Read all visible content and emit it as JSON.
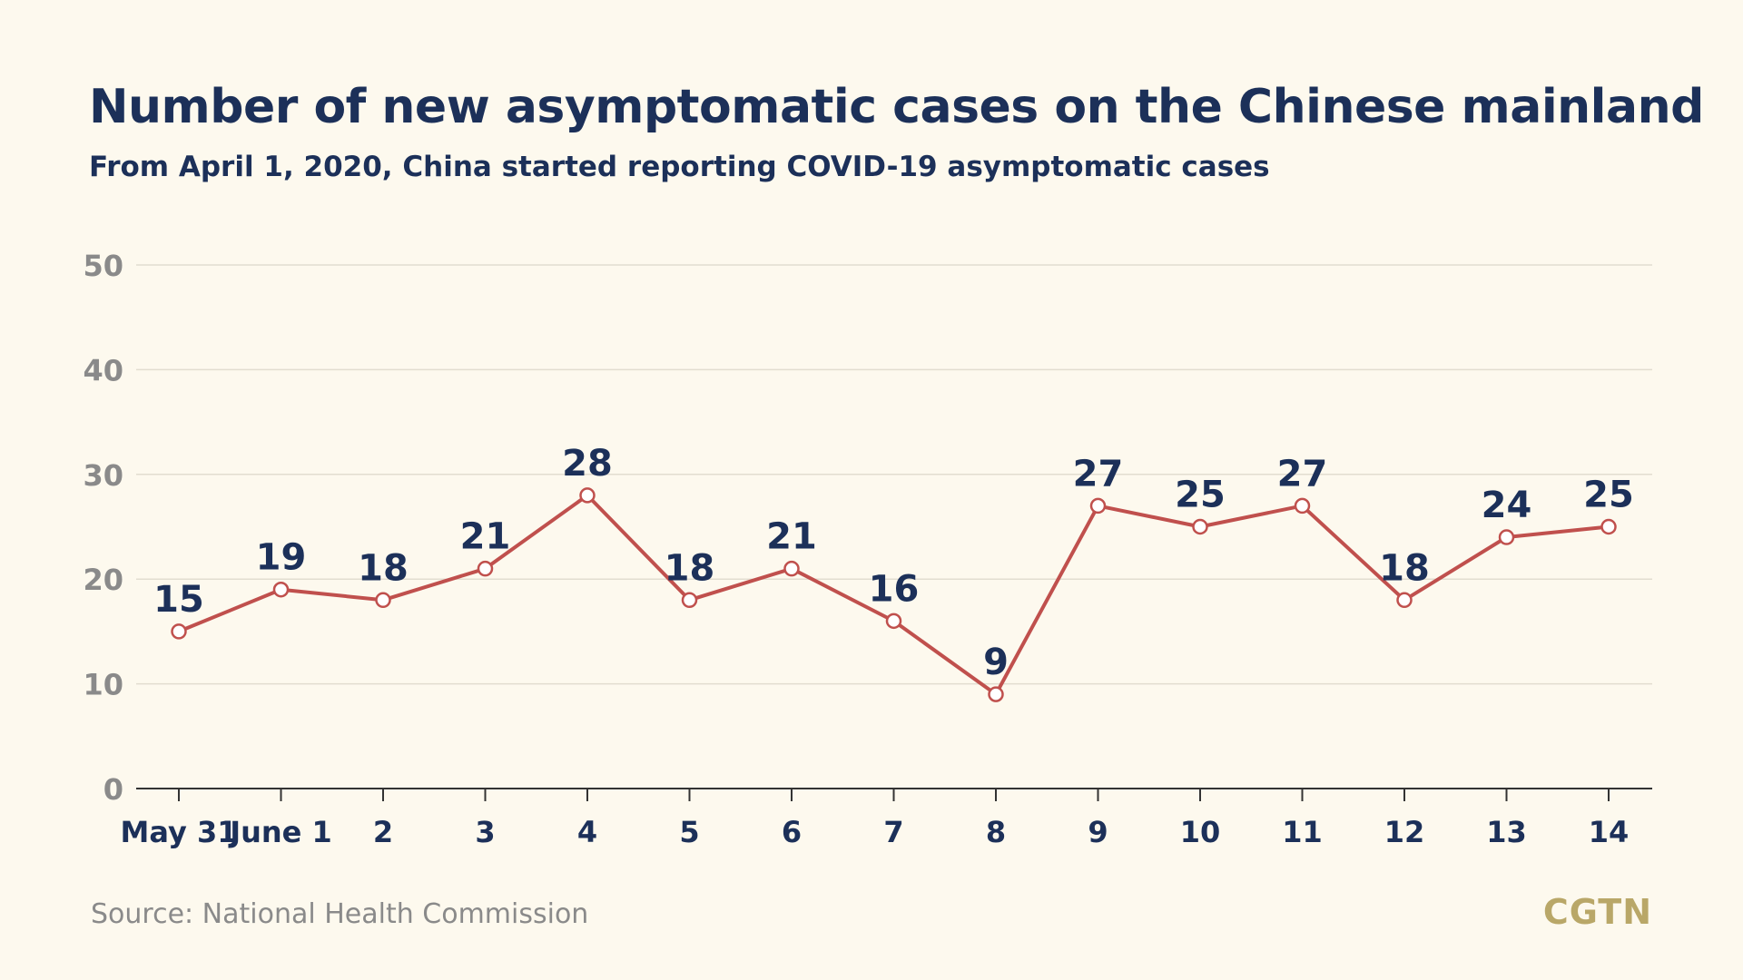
{
  "header": {
    "title": "Number of new asymptomatic cases on the Chinese mainland",
    "subtitle": "From April 1, 2020, China started reporting COVID-19 asymptomatic cases"
  },
  "footer": {
    "source": "Source: National Health Commission",
    "logo": "CGTN"
  },
  "colors": {
    "background": "#fdf9ee",
    "title": "#1c3059",
    "line": "#c0504d",
    "axis_tick_labels": "#8a8a8a",
    "gridline": "#e2ddd0",
    "logo": "#b9a768"
  },
  "chart_data": {
    "type": "line",
    "categories": [
      "May 31",
      "June 1",
      "2",
      "3",
      "4",
      "5",
      "6",
      "7",
      "8",
      "9",
      "10",
      "11",
      "12",
      "13",
      "14"
    ],
    "series": [
      {
        "values": [
          15,
          19,
          18,
          21,
          28,
          18,
          21,
          16,
          9,
          27,
          25,
          27,
          18,
          24,
          25
        ]
      }
    ],
    "data_labels": [
      "15",
      "19",
      "18",
      "21",
      "28",
      "18",
      "21",
      "16",
      "9",
      "27",
      "25",
      "27",
      "18",
      "24",
      "25"
    ],
    "ylim": [
      0,
      50
    ],
    "yticks": [
      0,
      10,
      20,
      30,
      40,
      50
    ],
    "grid": true,
    "legend": "none"
  }
}
